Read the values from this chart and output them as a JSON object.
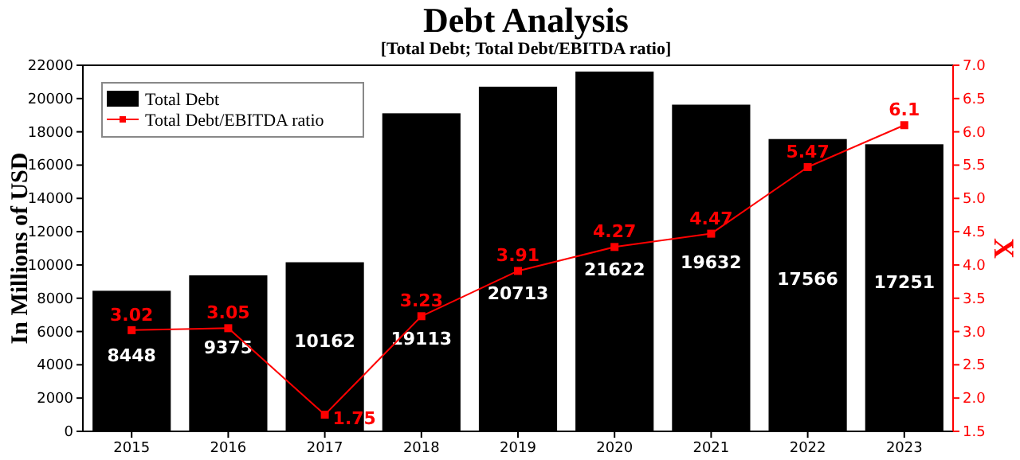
{
  "chart_data": {
    "type": "bar",
    "title": "Debt Analysis",
    "subtitle": "[Total Debt; Total Debt/EBITDA ratio]",
    "ylabel": "In Millions of USD",
    "y2label": "X",
    "categories": [
      "2015",
      "2016",
      "2017",
      "2018",
      "2019",
      "2020",
      "2021",
      "2022",
      "2023"
    ],
    "series": [
      {
        "name": "Total Debt",
        "color": "#000000",
        "values": [
          8448,
          9375,
          10162,
          19113,
          20713,
          21622,
          19632,
          17566,
          17251
        ]
      },
      {
        "name": "Total Debt/EBITDA ratio",
        "type": "line",
        "axis": "y2",
        "color": "#ff0000",
        "marker": "square",
        "values": [
          3.02,
          3.05,
          1.75,
          3.23,
          3.91,
          4.27,
          4.47,
          5.47,
          6.1
        ]
      }
    ],
    "ylim": [
      0,
      22000
    ],
    "yticks": [
      0,
      2000,
      4000,
      6000,
      8000,
      10000,
      12000,
      14000,
      16000,
      18000,
      20000,
      22000
    ],
    "y2lim": [
      1.5,
      7
    ],
    "y2ticks": [
      {
        "value": 1.5,
        "label": "1.5"
      },
      {
        "value": 2,
        "label": "2.0"
      },
      {
        "value": 2.5,
        "label": "2.5"
      },
      {
        "value": 3,
        "label": "3.0"
      },
      {
        "value": 3.5,
        "label": "3.5"
      },
      {
        "value": 4,
        "label": "4.0"
      },
      {
        "value": 4.5,
        "label": "4.5"
      },
      {
        "value": 5,
        "label": "5.0"
      },
      {
        "value": 5.5,
        "label": "5.5"
      },
      {
        "value": 6,
        "label": "6.0"
      },
      {
        "value": 6.5,
        "label": "6.5"
      },
      {
        "value": 7,
        "label": "7.0"
      }
    ],
    "data_labels": true,
    "legend": "top left",
    "grid": false
  }
}
